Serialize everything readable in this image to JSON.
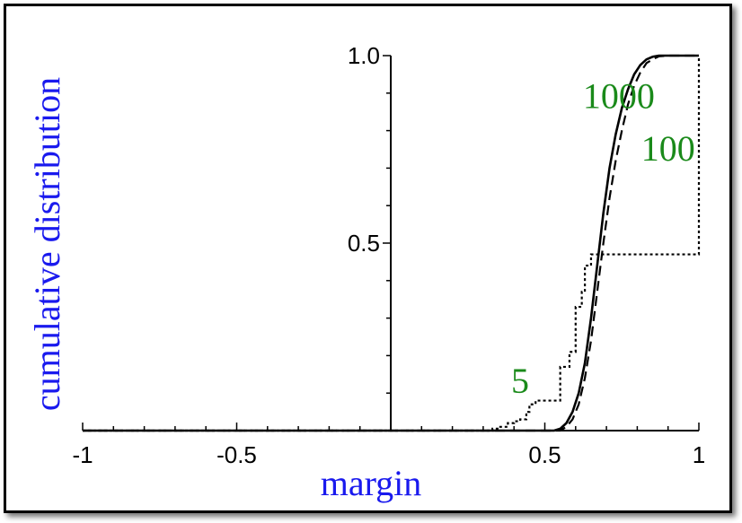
{
  "chart_data": {
    "type": "line",
    "xlabel": "margin",
    "ylabel": "cumulative distribution",
    "xlim": [
      -1,
      1
    ],
    "ylim": [
      0,
      1
    ],
    "x_tick_labels": [
      {
        "value": -1,
        "label": "-1"
      },
      {
        "value": -0.5,
        "label": "-0.5"
      },
      {
        "value": 0.5,
        "label": "0.5"
      },
      {
        "value": 1,
        "label": "1"
      }
    ],
    "y_tick_labels": [
      {
        "value": 0.5,
        "label": "0.5"
      },
      {
        "value": 1.0,
        "label": "1.0"
      }
    ],
    "series": [
      {
        "name": "5",
        "style": "dotted",
        "color": "#000000",
        "step": true,
        "x": [
          -1,
          0.3,
          0.33,
          0.35,
          0.38,
          0.4,
          0.42,
          0.44,
          0.45,
          0.47,
          0.55,
          0.58,
          0.6,
          0.62,
          0.63,
          0.65,
          1.0,
          1.0
        ],
        "y": [
          0,
          0,
          0.005,
          0.01,
          0.02,
          0.025,
          0.03,
          0.05,
          0.07,
          0.08,
          0.17,
          0.21,
          0.33,
          0.37,
          0.44,
          0.47,
          0.47,
          1.0
        ]
      },
      {
        "name": "100",
        "style": "dashed",
        "color": "#000000",
        "x": [
          -1,
          0.55,
          0.57,
          0.59,
          0.61,
          0.63,
          0.65,
          0.67,
          0.69,
          0.71,
          0.73,
          0.75,
          0.77,
          0.79,
          0.81,
          0.83,
          0.85,
          0.87,
          0.9,
          0.95,
          1.0
        ],
        "y": [
          0,
          0,
          0.01,
          0.03,
          0.07,
          0.14,
          0.24,
          0.37,
          0.5,
          0.62,
          0.72,
          0.8,
          0.87,
          0.92,
          0.955,
          0.98,
          0.99,
          0.998,
          1.0,
          1.0,
          1.0
        ]
      },
      {
        "name": "1000",
        "style": "solid",
        "color": "#000000",
        "x": [
          -1,
          0.53,
          0.55,
          0.57,
          0.59,
          0.61,
          0.63,
          0.65,
          0.67,
          0.69,
          0.71,
          0.73,
          0.75,
          0.77,
          0.79,
          0.81,
          0.83,
          0.85,
          0.87,
          0.9,
          0.95,
          1.0
        ],
        "y": [
          0,
          0,
          0.005,
          0.02,
          0.05,
          0.1,
          0.18,
          0.3,
          0.44,
          0.58,
          0.7,
          0.79,
          0.86,
          0.91,
          0.95,
          0.975,
          0.99,
          0.997,
          1.0,
          1.0,
          1.0,
          1.0
        ]
      }
    ],
    "annotations": [
      {
        "text": "1000",
        "x": 0.74,
        "y": 0.86,
        "color": "#1a8a1a"
      },
      {
        "text": "100",
        "x": 0.9,
        "y": 0.72,
        "color": "#1a8a1a"
      },
      {
        "text": "5",
        "x": 0.42,
        "y": 0.1,
        "color": "#1a8a1a"
      }
    ],
    "colors": {
      "axis_title": "#1a1aee",
      "series_label": "#1a8a1a",
      "line": "#000000"
    },
    "grid": false,
    "legend": "none"
  }
}
